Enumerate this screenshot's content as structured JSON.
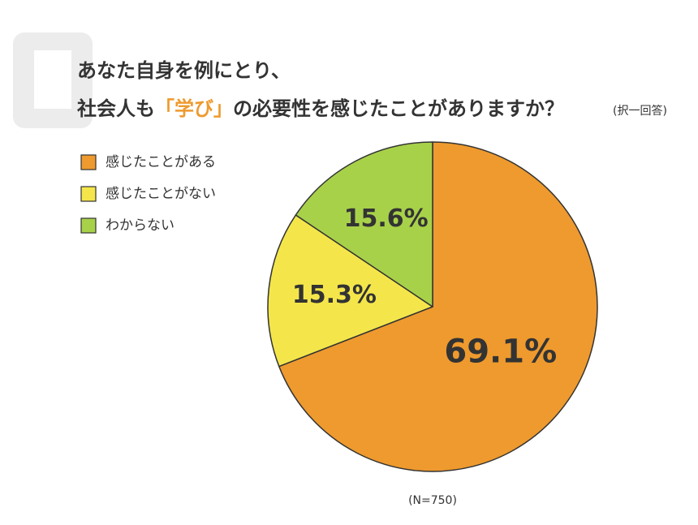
{
  "chart_data": {
    "type": "pie",
    "title": [
      {
        "text": "あなた自身を例にとり、",
        "color": "#333333"
      },
      {
        "text": "社会人も",
        "color": "#333333"
      },
      {
        "text": "「学び」",
        "color": "#ee9a2e"
      },
      {
        "text": "の必要性を感じたことがありますか？",
        "color": "#333333"
      }
    ],
    "subtitle": "(択一回答)",
    "note": "(N=750)",
    "categories": [
      "感じたことがある",
      "感じたことがない",
      "わからない"
    ],
    "values": [
      69.1,
      15.3,
      15.6
    ],
    "value_labels": [
      "69.1%",
      "15.3%",
      "15.6%"
    ],
    "colors": [
      "#ee9a2e",
      "#f4e64a",
      "#a8d14a"
    ],
    "legend": "upper left"
  }
}
